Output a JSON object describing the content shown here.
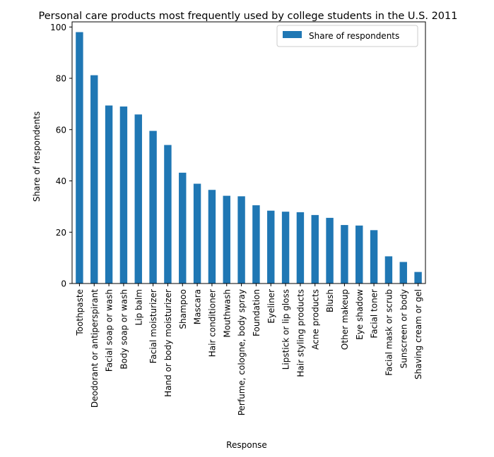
{
  "chart_data": {
    "type": "bar",
    "title": "Personal care products most frequently used by college students in the U.S. 2011",
    "xlabel": "Response",
    "ylabel": "Share of respondents",
    "ylim": [
      0,
      102
    ],
    "yticks": [
      0,
      20,
      40,
      60,
      80,
      100
    ],
    "grid": false,
    "legend_position": "top-right",
    "bar_color": "#1f77b4",
    "categories": [
      "Toothpaste",
      "Deodorant or antiperspirant",
      "Facial soap or wash",
      "Body soap or wash",
      "Lip balm",
      "Facial moisturizer",
      "Hand or body moisturizer",
      "Shampoo",
      "Mascara",
      "Hair conditioner",
      "Mouthwash",
      "Perfume, cologne, body spray",
      "Foundation",
      "Eyeliner",
      "Lipstick or lip gloss",
      "Hair styling products",
      "Acne products",
      "Blush",
      "Other makeup",
      "Eye shadow",
      "Facial toner",
      "Facial mask or scrub",
      "Sunscreen or body",
      "Shaving cream or gel"
    ],
    "series": [
      {
        "name": "Share of respondents",
        "values": [
          98,
          81.2,
          69.4,
          69,
          65.9,
          59.5,
          54,
          43.2,
          38.9,
          36.5,
          34.2,
          34,
          30.5,
          28.4,
          28,
          27.8,
          26.7,
          25.6,
          22.8,
          22.6,
          20.8,
          10.6,
          8.4,
          4.5
        ]
      }
    ]
  }
}
